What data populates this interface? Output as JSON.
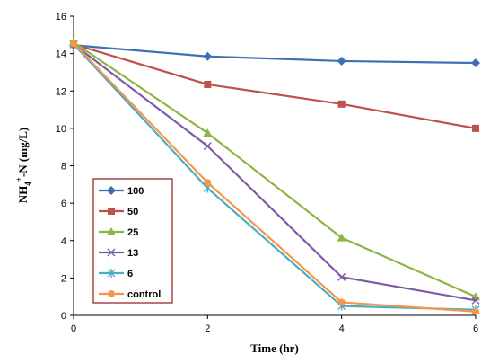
{
  "chart_data": {
    "type": "line",
    "x": [
      0,
      2,
      4,
      6
    ],
    "xlabel": "Time (hr)",
    "ylabel": "NH4+-N (mg/L)",
    "ylabel_parts": {
      "base": "NH",
      "sub": "4",
      "sup": "+",
      "rest": "-N (mg/L)"
    },
    "xlim": [
      0,
      6
    ],
    "ylim": [
      0,
      16
    ],
    "x_ticks": [
      0,
      2,
      4,
      6
    ],
    "y_ticks": [
      0,
      2,
      4,
      6,
      8,
      10,
      12,
      14,
      16
    ],
    "grid": false,
    "legend_position": "left-middle",
    "series": [
      {
        "name": "100",
        "color": "#3F6FB5",
        "marker": "diamond",
        "values": [
          14.45,
          13.85,
          13.6,
          13.5
        ]
      },
      {
        "name": "50",
        "color": "#C0504D",
        "marker": "square",
        "values": [
          14.5,
          12.35,
          11.3,
          10.0
        ]
      },
      {
        "name": "25",
        "color": "#8DB543",
        "marker": "triangle",
        "values": [
          14.6,
          9.75,
          4.15,
          1.0
        ]
      },
      {
        "name": "13",
        "color": "#7B5BA6",
        "marker": "x",
        "values": [
          14.5,
          9.05,
          2.05,
          0.8
        ]
      },
      {
        "name": "6",
        "color": "#4BACC6",
        "marker": "asterisk",
        "values": [
          14.5,
          6.8,
          0.5,
          0.3
        ]
      },
      {
        "name": "control",
        "color": "#F79646",
        "marker": "circle",
        "values": [
          14.55,
          7.1,
          0.7,
          0.2
        ]
      }
    ]
  }
}
